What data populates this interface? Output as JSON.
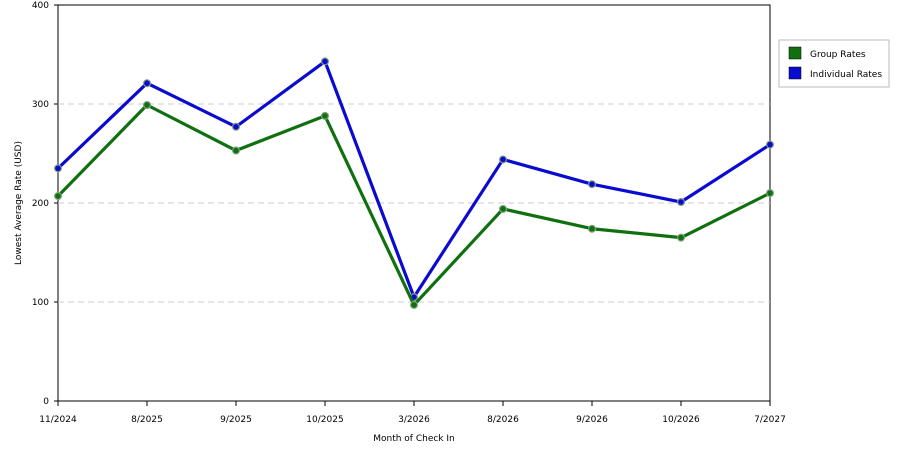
{
  "chart_data": {
    "type": "line",
    "title": "",
    "xlabel": "Month of Check In",
    "ylabel": "Lowest Average Rate (USD)",
    "ylim": [
      0,
      400
    ],
    "yticks": [
      0,
      100,
      200,
      300,
      400
    ],
    "grid": "horizontal dashed",
    "legend_position": "right",
    "categories": [
      "11/2024",
      "8/2025",
      "9/2025",
      "10/2025",
      "3/2026",
      "8/2026",
      "9/2026",
      "10/2026",
      "7/2027"
    ],
    "series": [
      {
        "name": "Group Rates",
        "color": "#107010",
        "values": [
          207,
          299,
          253,
          288,
          97,
          194,
          174,
          165,
          210
        ]
      },
      {
        "name": "Individual Rates",
        "color": "#0a0ad0",
        "values": [
          235,
          321,
          277,
          343,
          105,
          244,
          219,
          201,
          259
        ]
      }
    ]
  }
}
